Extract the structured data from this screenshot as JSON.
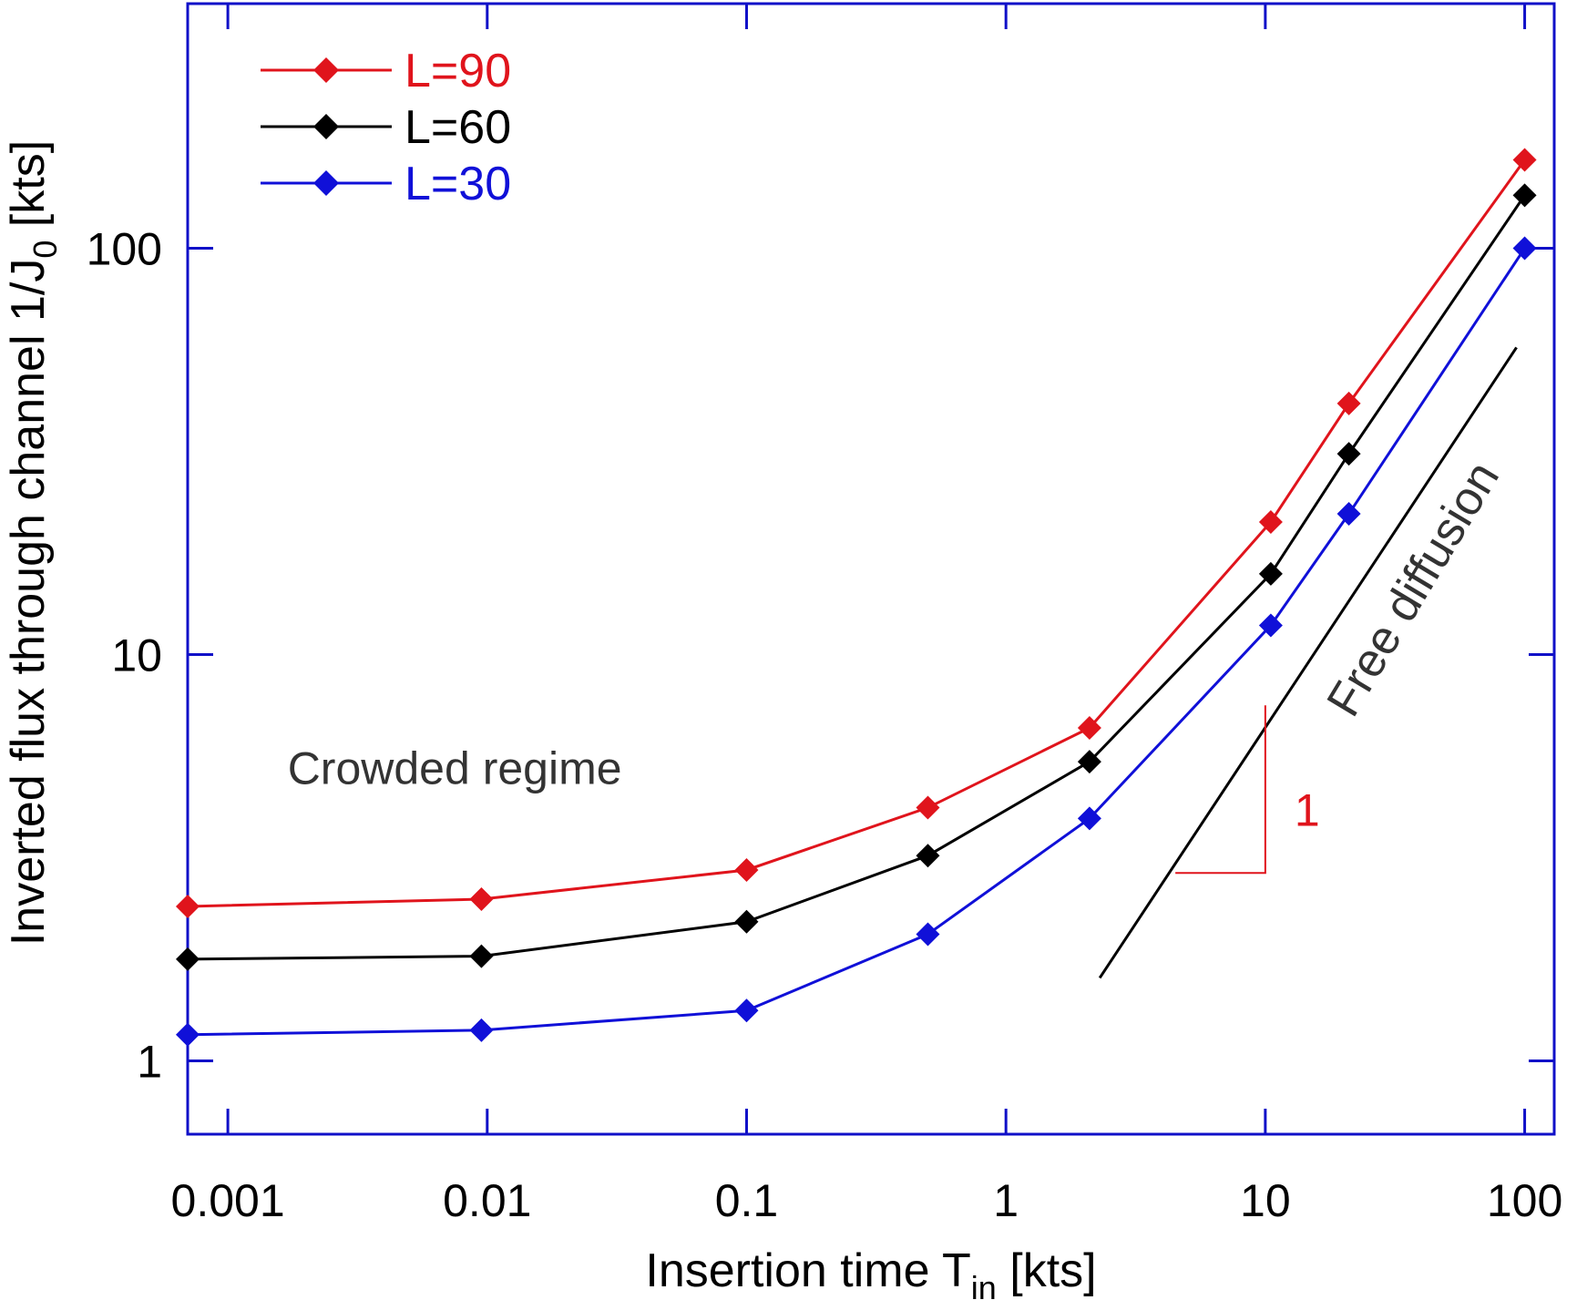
{
  "chart_data": {
    "type": "line",
    "title": "",
    "xlabel": {
      "main": "Insertion time T",
      "sub": "in",
      "unit": " [kts]"
    },
    "ylabel": {
      "main": "Inverted flux through channel 1/J",
      "sub": "0",
      "unit": " [kts]"
    },
    "xscale": "log",
    "yscale": "log",
    "xlim": [
      0.0007,
      130
    ],
    "ylim": [
      0.66,
      400
    ],
    "x_ticks": [
      {
        "value": 0.001,
        "label": "0.001"
      },
      {
        "value": 0.01,
        "label": "0.01"
      },
      {
        "value": 0.1,
        "label": "0.1"
      },
      {
        "value": 1,
        "label": "1"
      },
      {
        "value": 10,
        "label": "10"
      },
      {
        "value": 100,
        "label": "100"
      }
    ],
    "y_ticks": [
      {
        "value": 1,
        "label": "1"
      },
      {
        "value": 10,
        "label": "10"
      },
      {
        "value": 100,
        "label": "100"
      }
    ],
    "grid": false,
    "legend_position": "top-left",
    "x": [
      0.0007,
      0.0095,
      0.1,
      0.5,
      2.1,
      10.5,
      21,
      100
    ],
    "series": [
      {
        "name": "L=90",
        "color": "#e0141c",
        "marker": "diamond",
        "values": [
          2.4,
          2.5,
          2.95,
          4.2,
          6.6,
          21.2,
          41.5,
          165
        ]
      },
      {
        "name": "L=60",
        "color": "#000000",
        "marker": "diamond",
        "values": [
          1.78,
          1.81,
          2.2,
          3.2,
          5.45,
          15.8,
          31.2,
          135
        ]
      },
      {
        "name": "L=30",
        "color": "#1010d8",
        "marker": "diamond",
        "values": [
          1.16,
          1.19,
          1.33,
          2.05,
          3.95,
          11.8,
          22.2,
          100
        ]
      }
    ],
    "reference_line": {
      "label": "Free diffusion",
      "color": "#000000",
      "points": [
        [
          2.3,
          1.6
        ],
        [
          93,
          57
        ]
      ],
      "slope_triangle": {
        "label": "1",
        "color": "#e0141c",
        "vertex": [
          10,
          2.9
        ],
        "h_start": 4.5,
        "v_end": 7.5
      }
    },
    "annotations": [
      {
        "text": "Crowded regime",
        "x": 0.0017,
        "y": 4.8
      }
    ],
    "axis_color": "#1010c8"
  }
}
